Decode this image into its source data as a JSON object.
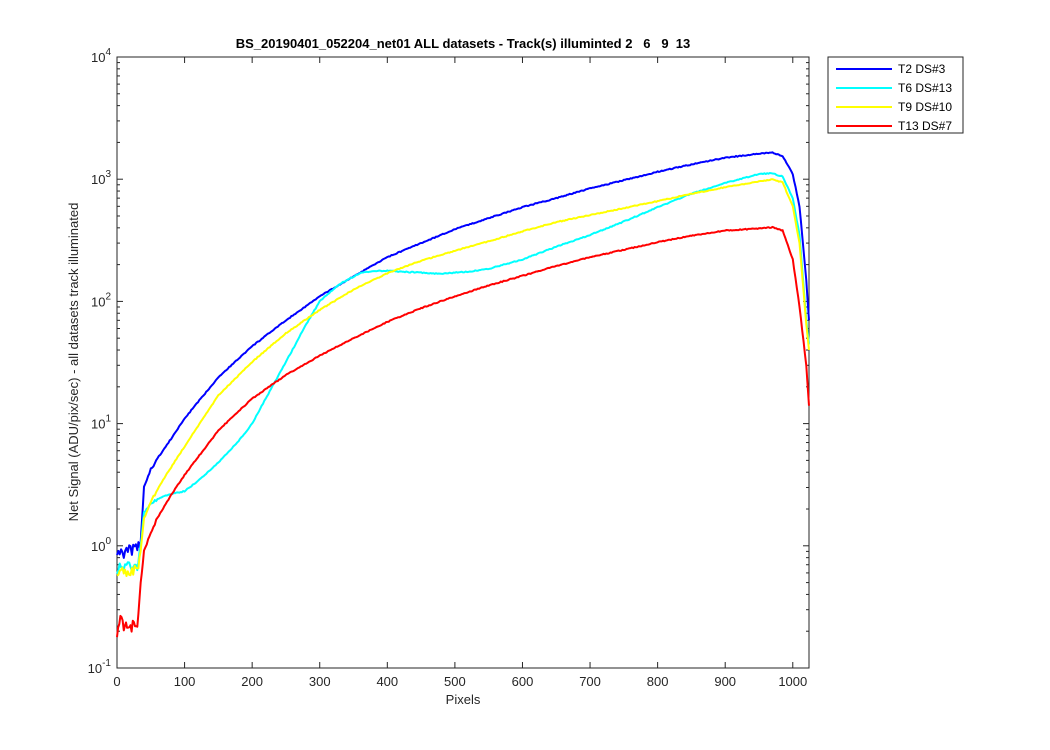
{
  "window": {
    "background": "#ffffff"
  },
  "chart_data": {
    "type": "line",
    "title": "BS_20190401_052204_net01 ALL datasets - Track(s) illuminted 2   6   9  13",
    "xlabel": "Pixels",
    "ylabel": "Net Signal (ADU/pix/sec) - all datasets track illuminated",
    "xlim": [
      0,
      1024
    ],
    "ylim": [
      0.1,
      10000
    ],
    "yscale": "log",
    "grid": false,
    "legend_position": "outside-top-right",
    "x_ticks": [
      "0",
      "100",
      "200",
      "300",
      "400",
      "500",
      "600",
      "700",
      "800",
      "900",
      "1000"
    ],
    "x_tick_values": [
      0,
      100,
      200,
      300,
      400,
      500,
      600,
      700,
      800,
      900,
      1000
    ],
    "y_ticks": [
      {
        "base": "10",
        "exp": "-1",
        "value": 0.1
      },
      {
        "base": "10",
        "exp": "0",
        "value": 1
      },
      {
        "base": "10",
        "exp": "1",
        "value": 10
      },
      {
        "base": "10",
        "exp": "2",
        "value": 100
      },
      {
        "base": "10",
        "exp": "3",
        "value": 1000
      },
      {
        "base": "10",
        "exp": "4",
        "value": 10000
      }
    ],
    "series": [
      {
        "name": "T2 DS#3",
        "color": "#0000ff",
        "x": [
          0,
          10,
          20,
          30,
          35,
          40,
          50,
          60,
          80,
          100,
          150,
          200,
          250,
          300,
          350,
          400,
          450,
          500,
          550,
          600,
          650,
          700,
          750,
          800,
          850,
          900,
          950,
          970,
          985,
          1000,
          1010,
          1020,
          1024
        ],
        "y": [
          0.9,
          0.88,
          0.92,
          0.95,
          1.1,
          3.0,
          4.2,
          5.2,
          7.5,
          11,
          24,
          43,
          70,
          110,
          160,
          230,
          300,
          390,
          480,
          590,
          700,
          840,
          980,
          1150,
          1320,
          1500,
          1620,
          1650,
          1550,
          1100,
          600,
          150,
          70
        ]
      },
      {
        "name": "T6 DS#13",
        "color": "#00ffff",
        "x": [
          0,
          10,
          20,
          30,
          35,
          40,
          50,
          60,
          70,
          80,
          100,
          120,
          150,
          180,
          200,
          220,
          250,
          280,
          300,
          330,
          360,
          380,
          400,
          430,
          450,
          480,
          500,
          520,
          550,
          600,
          650,
          700,
          750,
          800,
          850,
          900,
          950,
          970,
          985,
          1000,
          1010,
          1020,
          1024
        ],
        "y": [
          0.65,
          0.66,
          0.67,
          0.7,
          1.0,
          1.9,
          2.2,
          2.4,
          2.55,
          2.65,
          2.8,
          3.4,
          4.8,
          7.2,
          10,
          16,
          32,
          65,
          100,
          140,
          170,
          178,
          178,
          174,
          172,
          168,
          172,
          175,
          185,
          220,
          280,
          350,
          450,
          590,
          760,
          930,
          1100,
          1120,
          1050,
          700,
          350,
          70,
          45
        ]
      },
      {
        "name": "T9 DS#10",
        "color": "#ffff00",
        "x": [
          0,
          10,
          20,
          30,
          35,
          40,
          50,
          70,
          100,
          150,
          200,
          250,
          300,
          350,
          400,
          450,
          500,
          550,
          600,
          650,
          700,
          750,
          800,
          850,
          900,
          950,
          970,
          985,
          1000,
          1010,
          1020,
          1024
        ],
        "y": [
          0.6,
          0.62,
          0.62,
          0.62,
          0.9,
          1.7,
          2.3,
          3.6,
          6.5,
          17,
          32,
          55,
          85,
          125,
          170,
          215,
          260,
          310,
          375,
          445,
          510,
          580,
          660,
          760,
          860,
          960,
          1000,
          940,
          600,
          300,
          65,
          40
        ]
      },
      {
        "name": "T13 DS#7",
        "color": "#ff0000",
        "x": [
          0,
          5,
          10,
          15,
          20,
          25,
          30,
          35,
          40,
          50,
          60,
          80,
          100,
          150,
          200,
          250,
          300,
          350,
          400,
          450,
          500,
          550,
          600,
          650,
          700,
          750,
          800,
          850,
          900,
          950,
          970,
          985,
          1000,
          1010,
          1020,
          1024
        ],
        "y": [
          0.19,
          0.28,
          0.2,
          0.22,
          0.21,
          0.24,
          0.23,
          0.5,
          0.9,
          1.3,
          1.7,
          2.6,
          3.8,
          8.8,
          16,
          25,
          36,
          50,
          68,
          88,
          110,
          135,
          162,
          195,
          230,
          265,
          305,
          345,
          380,
          395,
          405,
          380,
          220,
          90,
          30,
          14
        ]
      }
    ]
  }
}
